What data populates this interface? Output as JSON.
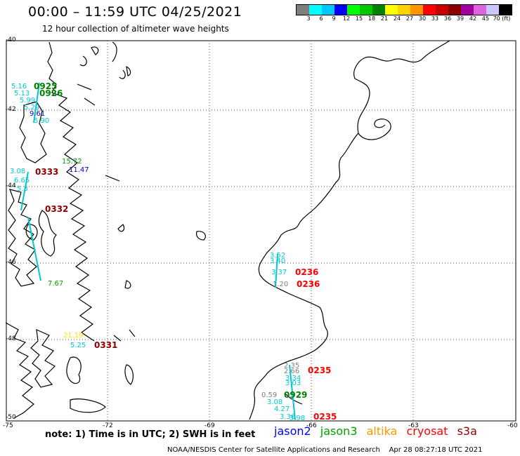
{
  "header": {
    "title": "00:00 – 11:59 UTC 04/25/2021",
    "subtitle": "12 hour collection of altimeter wave heights"
  },
  "colorbar": {
    "colors": [
      "#7f7f7f",
      "#00ffff",
      "#00c8ff",
      "#0000ff",
      "#00ff00",
      "#00c800",
      "#008200",
      "#ffff00",
      "#ffd200",
      "#ff9600",
      "#ff0000",
      "#c80000",
      "#8c0000",
      "#a000a0",
      "#dc64dc",
      "#c8c8ff",
      "#000000"
    ],
    "labels": [
      "3",
      "6",
      "9",
      "12",
      "15",
      "18",
      "21",
      "24",
      "27",
      "30",
      "33",
      "36",
      "39",
      "42",
      "45",
      "70 (ft)"
    ]
  },
  "axes": {
    "y_ticks": [
      "-40",
      "-42",
      "-44",
      "-46",
      "-48",
      "-50"
    ],
    "x_ticks": [
      "-75",
      "-72",
      "-69",
      "-66",
      "-63",
      "-60"
    ]
  },
  "observations": [
    {
      "text": "5.16",
      "color": "#00c8d0"
    },
    {
      "text": "0925",
      "color": "#008200",
      "pass": true
    },
    {
      "text": "5.13",
      "color": "#00c8d0"
    },
    {
      "text": "0926",
      "color": "#008200",
      "pass": true
    },
    {
      "text": "5.99",
      "color": "#00c8d0"
    },
    {
      "text": "5.29",
      "color": "#00c8d0"
    },
    {
      "text": "9.61",
      "color": "#0000c8"
    },
    {
      "text": "5.90",
      "color": "#00c8d0"
    },
    {
      "text": "15.72",
      "color": "#00a000"
    },
    {
      "text": "3.08",
      "color": "#00c8d0"
    },
    {
      "text": "0333",
      "color": "#8c0000",
      "pass": true
    },
    {
      "text": "11.47",
      "color": "#0000c8"
    },
    {
      "text": "6.65",
      "color": "#00c8d0"
    },
    {
      "text": "5.3",
      "color": "#00c8d0"
    },
    {
      "text": "0332",
      "color": "#8c0000",
      "pass": true
    },
    {
      "text": "7.67",
      "color": "#00a000"
    },
    {
      "text": "3.52",
      "color": "#00c8d0"
    },
    {
      "text": "3.40",
      "color": "#00c8d0"
    },
    {
      "text": "3.37",
      "color": "#00c8d0"
    },
    {
      "text": "0236",
      "color": "#ff0000",
      "pass": true
    },
    {
      "text": "1.20",
      "color": "#7f7f7f"
    },
    {
      "text": "0236",
      "color": "#ff0000",
      "pass": true
    },
    {
      "text": "21.19",
      "color": "#ffe600"
    },
    {
      "text": "5.25",
      "color": "#00c8d0"
    },
    {
      "text": "0331",
      "color": "#8c0000",
      "pass": true
    },
    {
      "text": "2.35",
      "color": "#7f7f7f"
    },
    {
      "text": "2.66",
      "color": "#7f7f7f"
    },
    {
      "text": "0235",
      "color": "#ff0000",
      "pass": true
    },
    {
      "text": "3.34",
      "color": "#00c8d0"
    },
    {
      "text": "3.03",
      "color": "#00c8d0"
    },
    {
      "text": "0.59",
      "color": "#7f7f7f"
    },
    {
      "text": "0929",
      "color": "#008200",
      "pass": true
    },
    {
      "text": "3.08",
      "color": "#00c8d0"
    },
    {
      "text": "4.27",
      "color": "#00c8d0"
    },
    {
      "text": "3.36",
      "color": "#00c8d0"
    },
    {
      "text": "3.98",
      "color": "#00c8d0"
    },
    {
      "text": "0235",
      "color": "#ff0000",
      "pass": true
    }
  ],
  "footer": {
    "note": "note:  1) Time is in UTC;  2) SWH is in feet",
    "satellites": [
      {
        "name": "jason2",
        "color": "#0000ff"
      },
      {
        "name": "jason3",
        "color": "#00a000"
      },
      {
        "name": "altika",
        "color": "#ff9600"
      },
      {
        "name": "cryosat",
        "color": "#ff0000"
      },
      {
        "name": "s3a",
        "color": "#8c0000"
      }
    ],
    "credit": "NOAA/NESDIS Center for Satellite Applications and Research    Apr 28 08:27:18 UTC 2021"
  }
}
